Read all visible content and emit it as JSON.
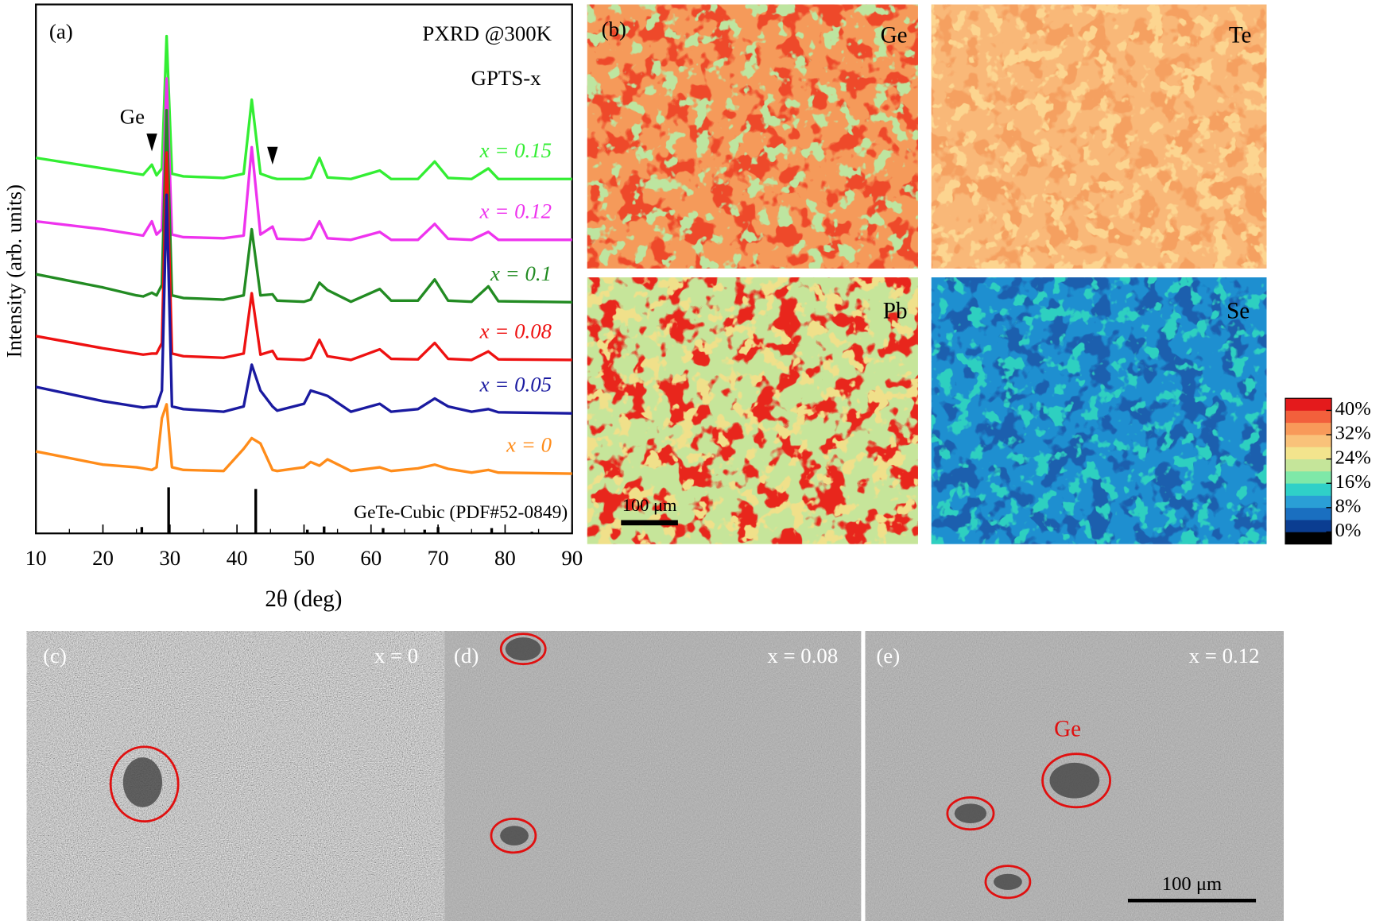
{
  "chart_data": [
    {
      "type": "line",
      "panel_label": "(a)",
      "annotations": [
        "PXRD @300K",
        "GPTS-x"
      ],
      "arrow_label": "Ge",
      "arrow_x": [
        27.3,
        45.3
      ],
      "x_label": "2θ (deg)",
      "y_label": "Intensity (arb. units)",
      "xlim": [
        10,
        90
      ],
      "ylim": [
        0,
        100
      ],
      "xticks": [
        10,
        20,
        30,
        40,
        50,
        60,
        70,
        80,
        90
      ],
      "xminorticks": [
        15,
        25,
        35,
        45,
        55,
        65,
        75,
        85
      ],
      "x": [
        10,
        20,
        25,
        26,
        27.3,
        28,
        28.8,
        29.5,
        30.3,
        32,
        38,
        41,
        42.2,
        43.5,
        45.3,
        46,
        50,
        51,
        52.3,
        53.5,
        57,
        61.3,
        63,
        67,
        69.5,
        71.5,
        75,
        77.5,
        79,
        90
      ],
      "series": [
        {
          "name": "x = 0.15",
          "color": "#33ee33",
          "values": [
            71,
            69,
            68,
            67.8,
            69.7,
            67.7,
            69,
            94,
            68,
            67.5,
            67.2,
            68,
            82,
            68,
            67.2,
            67,
            67,
            67.3,
            71,
            67.3,
            67,
            68.6,
            67,
            67,
            70.3,
            67.2,
            67,
            69,
            67,
            67
          ]
        },
        {
          "name": "x = 0.12",
          "color": "#ee33ee",
          "values": [
            59,
            57.5,
            56.5,
            56.3,
            59,
            56.5,
            57.5,
            86,
            56.5,
            56,
            55.8,
            56.3,
            73,
            56.5,
            58,
            55.7,
            55.5,
            55.8,
            59,
            55.8,
            55.5,
            57,
            55.5,
            55.5,
            58.5,
            55.7,
            55.5,
            57,
            55.5,
            55.5
          ]
        },
        {
          "name": "x = 0.1",
          "color": "#228b22",
          "values": [
            49,
            46.5,
            45,
            44.8,
            45.5,
            45,
            47,
            80,
            45,
            44.5,
            44.2,
            45,
            57.5,
            45,
            45.2,
            44,
            43.8,
            44.2,
            47.4,
            46,
            43.8,
            46.2,
            44,
            44,
            48,
            44,
            43.8,
            46.7,
            43.9,
            43.7
          ]
        },
        {
          "name": "x = 0.08",
          "color": "#ee1111",
          "values": [
            37.3,
            35,
            34,
            33.8,
            34,
            34,
            36,
            72,
            34,
            33.5,
            33.2,
            34,
            45.4,
            33.8,
            34.5,
            33,
            32.8,
            33.2,
            36.6,
            33.5,
            32.8,
            34.8,
            33,
            32.9,
            36,
            33,
            32.8,
            34.4,
            32.9,
            32.8
          ]
        },
        {
          "name": "x = 0.05",
          "color": "#1a1aa0",
          "values": [
            27.7,
            25,
            24,
            23.8,
            24,
            24,
            27,
            64,
            24,
            23.5,
            23,
            24,
            31.9,
            27,
            24,
            23.2,
            24.5,
            27,
            26.5,
            26,
            23,
            24.5,
            23,
            23.5,
            25.5,
            24,
            23,
            23.5,
            22.9,
            22.7
          ]
        },
        {
          "name": "x = 0",
          "color": "#ff8c1a",
          "values": [
            15.5,
            13,
            12.5,
            12.3,
            12,
            12.5,
            21.8,
            24.4,
            12.5,
            12,
            11.8,
            16,
            18,
            17,
            12,
            11.8,
            12.5,
            13.5,
            12.8,
            14,
            11.8,
            12.5,
            11.8,
            12.3,
            13,
            12.2,
            11.5,
            12,
            11.5,
            11.3
          ]
        }
      ],
      "reference": {
        "name": "GeTe-Cubic (PDF#52-0849)",
        "color": "#000000",
        "x": [
          25.8,
          29.8,
          42.8,
          50.5,
          53,
          61.8,
          68,
          70,
          78,
          84
        ],
        "values": [
          1.2,
          8.7,
          8.4,
          0.7,
          1.3,
          1,
          0.7,
          1.2,
          1,
          0.3
        ]
      }
    },
    {
      "type": "maps",
      "panel_label": "(b)",
      "maps": [
        {
          "name": "Ge",
          "colors": [
            "#f59a5a",
            "#ee4a2a",
            "#bde5a0"
          ]
        },
        {
          "name": "Te",
          "colors": [
            "#f9b878",
            "#f5a060",
            "#fcd590"
          ]
        },
        {
          "name": "Pb",
          "colors": [
            "#c6e59a",
            "#e8281c",
            "#f0e08a"
          ]
        },
        {
          "name": "Se",
          "colors": [
            "#1e8fd0",
            "#1b5fae",
            "#2fd0c0"
          ]
        }
      ],
      "scale_bar": "100 μm",
      "colorbar": {
        "clim": [
          -4,
          44
        ],
        "colors": [
          "#000000",
          "#0b3d91",
          "#1a6fc0",
          "#2a9fd6",
          "#2fd0c8",
          "#7ee8a8",
          "#c5e59a",
          "#f3e48d",
          "#f9c27a",
          "#f89a5a",
          "#f2603c",
          "#e41a1c"
        ],
        "ticks": [
          {
            "value": 0,
            "label": "0%"
          },
          {
            "value": 8,
            "label": "8%"
          },
          {
            "value": 16,
            "label": "16%"
          },
          {
            "value": 24,
            "label": "24%"
          },
          {
            "value": 32,
            "label": "32%"
          },
          {
            "value": 40,
            "label": "40%"
          }
        ]
      }
    },
    {
      "type": "micrographs",
      "panels": [
        {
          "label": "(c)",
          "condition": "x = 0"
        },
        {
          "label": "(d)",
          "condition": "x = 0.08"
        },
        {
          "label": "(e)",
          "condition": "x = 0.12"
        }
      ],
      "annotation": "Ge",
      "scale_bar": "100 μm"
    }
  ]
}
